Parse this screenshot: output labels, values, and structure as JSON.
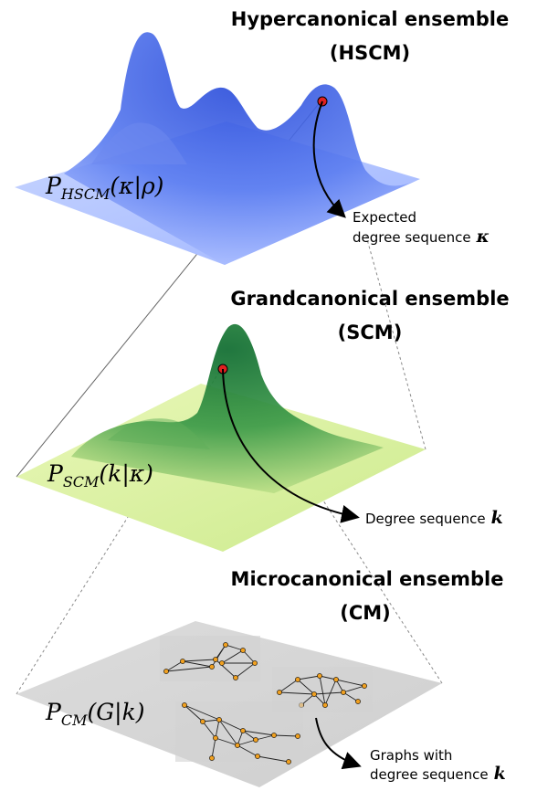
{
  "levels": [
    {
      "title_line1": "Hypercanonical ensemble",
      "title_line2": "(HSCM)",
      "formula_main": "P",
      "formula_sub": "HSCM",
      "formula_args": "(κ|ρ)",
      "annotation_line1": "Expected",
      "annotation_line2": "degree sequence",
      "annotation_symbol": "κ",
      "color": "#4a6ee8"
    },
    {
      "title_line1": "Grandcanonical ensemble",
      "title_line2": "(SCM)",
      "formula_main": "P",
      "formula_sub": "SCM",
      "formula_args": "(k|κ)",
      "annotation_line1": "Degree sequence",
      "annotation_symbol": "k",
      "color": "#2e8b3a"
    },
    {
      "title_line1": "Microcanonical ensemble",
      "title_line2": "(CM)",
      "formula_main": "P",
      "formula_sub": "CM",
      "formula_args": "(G|k)",
      "annotation_line1": "Graphs with",
      "annotation_line2": "degree sequence",
      "annotation_symbol": "k",
      "color": "#d6d6d6"
    }
  ]
}
